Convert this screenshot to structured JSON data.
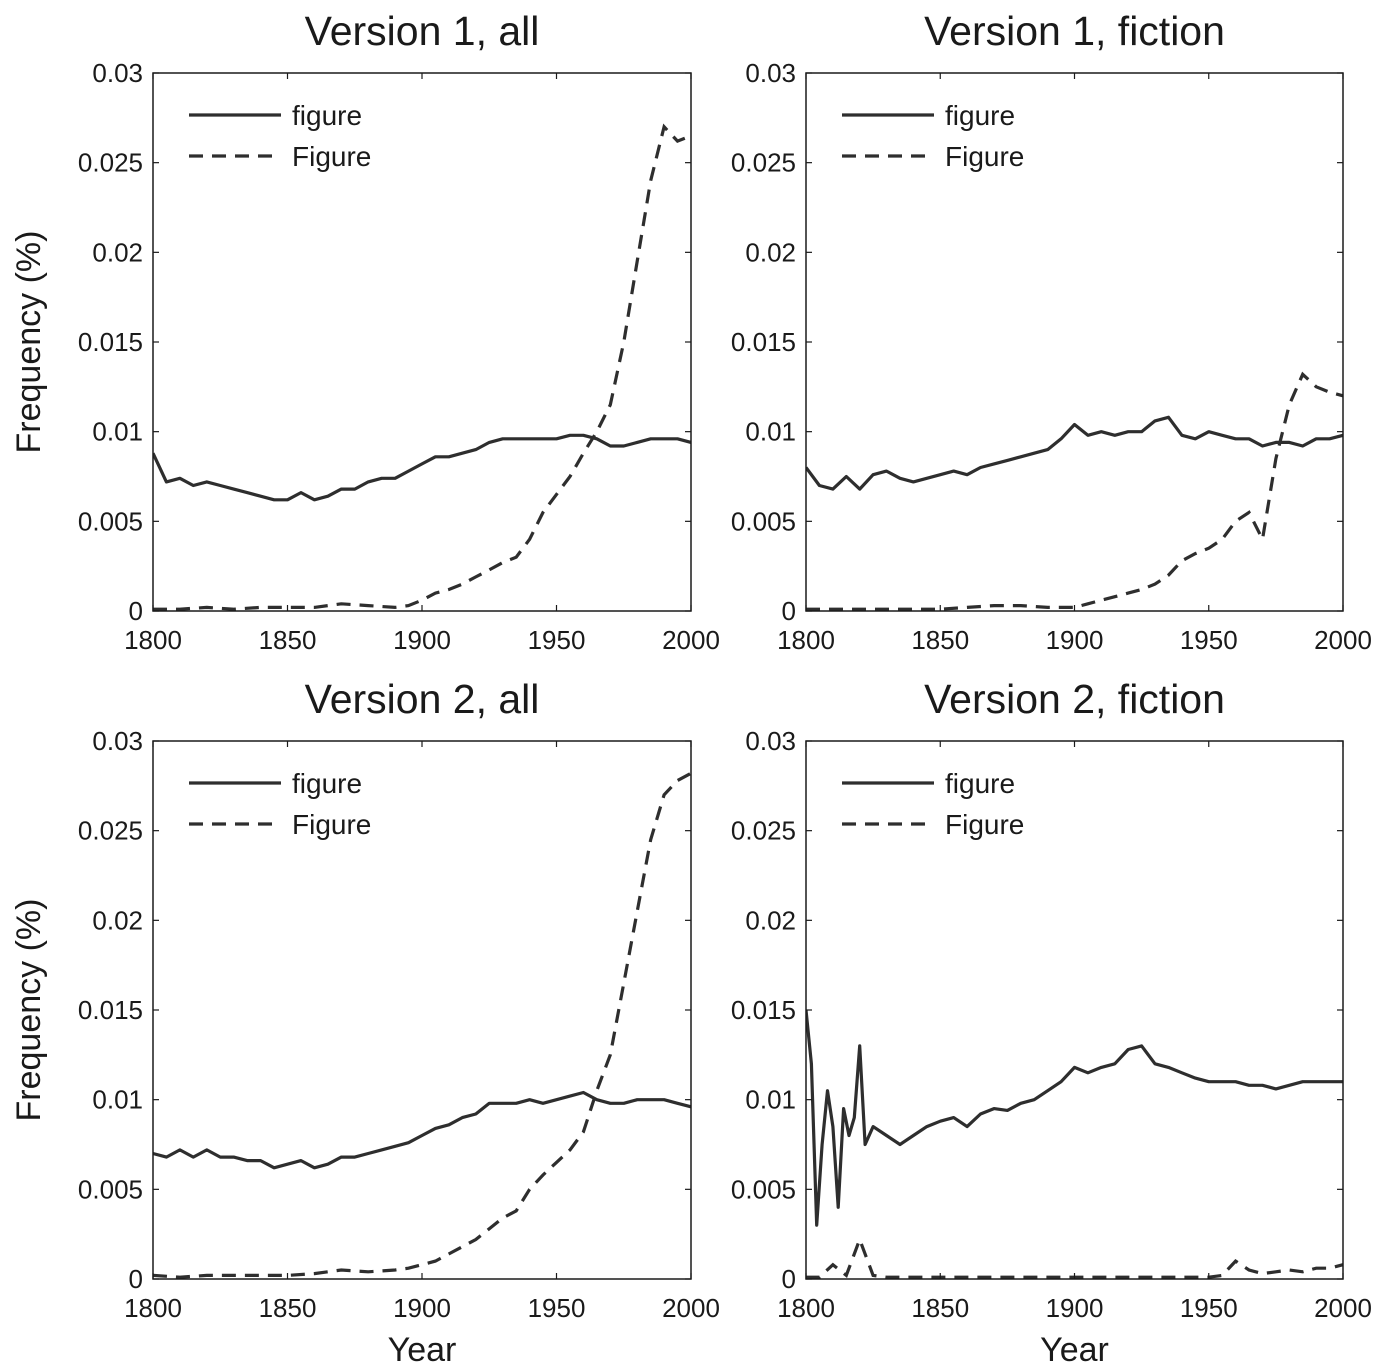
{
  "figure": {
    "colors": {
      "line": "#2e2e2e",
      "axes": "#1a1a1a",
      "background": "#ffffff"
    }
  },
  "chart_data": [
    {
      "type": "line",
      "title": "Version 1, all",
      "xlabel": "",
      "ylabel": "Frequency (%)",
      "xlim": [
        1800,
        2000
      ],
      "ylim": [
        0,
        0.03
      ],
      "xticks": [
        "1800",
        "1850",
        "1900",
        "1950",
        "2000"
      ],
      "yticks": [
        "0",
        "0.005",
        "0.01",
        "0.015",
        "0.02",
        "0.025",
        "0.03"
      ],
      "legend": "top-left",
      "series": [
        {
          "name": "figure",
          "style": "solid",
          "x": [
            1800,
            1805,
            1810,
            1815,
            1820,
            1825,
            1830,
            1835,
            1840,
            1845,
            1850,
            1855,
            1860,
            1865,
            1870,
            1875,
            1880,
            1885,
            1890,
            1895,
            1900,
            1905,
            1910,
            1915,
            1920,
            1925,
            1930,
            1935,
            1940,
            1945,
            1950,
            1955,
            1960,
            1965,
            1970,
            1975,
            1980,
            1985,
            1990,
            1995,
            2000
          ],
          "y": [
            0.0088,
            0.0072,
            0.0074,
            0.007,
            0.0072,
            0.007,
            0.0068,
            0.0066,
            0.0064,
            0.0062,
            0.0062,
            0.0066,
            0.0062,
            0.0064,
            0.0068,
            0.0068,
            0.0072,
            0.0074,
            0.0074,
            0.0078,
            0.0082,
            0.0086,
            0.0086,
            0.0088,
            0.009,
            0.0094,
            0.0096,
            0.0096,
            0.0096,
            0.0096,
            0.0096,
            0.0098,
            0.0098,
            0.0096,
            0.0092,
            0.0092,
            0.0094,
            0.0096,
            0.0096,
            0.0096,
            0.0094
          ]
        },
        {
          "name": "Figure",
          "style": "dashed",
          "x": [
            1800,
            1810,
            1820,
            1830,
            1840,
            1850,
            1860,
            1870,
            1880,
            1890,
            1895,
            1900,
            1905,
            1910,
            1915,
            1920,
            1925,
            1930,
            1935,
            1940,
            1945,
            1950,
            1955,
            1960,
            1965,
            1970,
            1975,
            1980,
            1985,
            1990,
            1995,
            2000
          ],
          "y": [
            0.0001,
            0.0001,
            0.0002,
            0.0001,
            0.0002,
            0.0002,
            0.0002,
            0.0004,
            0.0003,
            0.0002,
            0.0003,
            0.0006,
            0.001,
            0.0012,
            0.0015,
            0.0019,
            0.0023,
            0.0027,
            0.003,
            0.004,
            0.0055,
            0.0065,
            0.0075,
            0.0088,
            0.01,
            0.0115,
            0.015,
            0.0195,
            0.024,
            0.027,
            0.0262,
            0.0265
          ]
        }
      ]
    },
    {
      "type": "line",
      "title": "Version 1, fiction",
      "xlabel": "",
      "ylabel": "",
      "xlim": [
        1800,
        2000
      ],
      "ylim": [
        0,
        0.03
      ],
      "xticks": [
        "1800",
        "1850",
        "1900",
        "1950",
        "2000"
      ],
      "yticks": [
        "0",
        "0.005",
        "0.01",
        "0.015",
        "0.02",
        "0.025",
        "0.03"
      ],
      "legend": "top-left",
      "series": [
        {
          "name": "figure",
          "style": "solid",
          "x": [
            1800,
            1805,
            1810,
            1815,
            1820,
            1825,
            1830,
            1835,
            1840,
            1845,
            1850,
            1855,
            1860,
            1865,
            1870,
            1875,
            1880,
            1885,
            1890,
            1895,
            1900,
            1905,
            1910,
            1915,
            1920,
            1925,
            1930,
            1935,
            1940,
            1945,
            1950,
            1955,
            1960,
            1965,
            1970,
            1975,
            1980,
            1985,
            1990,
            1995,
            2000
          ],
          "y": [
            0.008,
            0.007,
            0.0068,
            0.0075,
            0.0068,
            0.0076,
            0.0078,
            0.0074,
            0.0072,
            0.0074,
            0.0076,
            0.0078,
            0.0076,
            0.008,
            0.0082,
            0.0084,
            0.0086,
            0.0088,
            0.009,
            0.0096,
            0.0104,
            0.0098,
            0.01,
            0.0098,
            0.01,
            0.01,
            0.0106,
            0.0108,
            0.0098,
            0.0096,
            0.01,
            0.0098,
            0.0096,
            0.0096,
            0.0092,
            0.0094,
            0.0094,
            0.0092,
            0.0096,
            0.0096,
            0.0098
          ]
        },
        {
          "name": "Figure",
          "style": "dashed",
          "x": [
            1800,
            1810,
            1820,
            1830,
            1840,
            1850,
            1860,
            1870,
            1880,
            1890,
            1900,
            1905,
            1910,
            1915,
            1920,
            1925,
            1930,
            1935,
            1940,
            1945,
            1950,
            1955,
            1960,
            1965,
            1970,
            1975,
            1980,
            1985,
            1990,
            1995,
            2000
          ],
          "y": [
            0.0001,
            0.0001,
            0.0001,
            0.0001,
            0.0001,
            0.0001,
            0.0002,
            0.0003,
            0.0003,
            0.0002,
            0.0002,
            0.0004,
            0.0006,
            0.0008,
            0.001,
            0.0012,
            0.0015,
            0.002,
            0.0028,
            0.0032,
            0.0035,
            0.004,
            0.005,
            0.0055,
            0.004,
            0.0085,
            0.0115,
            0.0132,
            0.0125,
            0.0122,
            0.012
          ]
        }
      ]
    },
    {
      "type": "line",
      "title": "Version 2, all",
      "xlabel": "Year",
      "ylabel": "Frequency (%)",
      "xlim": [
        1800,
        2000
      ],
      "ylim": [
        0,
        0.03
      ],
      "xticks": [
        "1800",
        "1850",
        "1900",
        "1950",
        "2000"
      ],
      "yticks": [
        "0",
        "0.005",
        "0.01",
        "0.015",
        "0.02",
        "0.025",
        "0.03"
      ],
      "legend": "top-left",
      "series": [
        {
          "name": "figure",
          "style": "solid",
          "x": [
            1800,
            1805,
            1810,
            1815,
            1820,
            1825,
            1830,
            1835,
            1840,
            1845,
            1850,
            1855,
            1860,
            1865,
            1870,
            1875,
            1880,
            1885,
            1890,
            1895,
            1900,
            1905,
            1910,
            1915,
            1920,
            1925,
            1930,
            1935,
            1940,
            1945,
            1950,
            1955,
            1960,
            1965,
            1970,
            1975,
            1980,
            1985,
            1990,
            1995,
            2000
          ],
          "y": [
            0.007,
            0.0068,
            0.0072,
            0.0068,
            0.0072,
            0.0068,
            0.0068,
            0.0066,
            0.0066,
            0.0062,
            0.0064,
            0.0066,
            0.0062,
            0.0064,
            0.0068,
            0.0068,
            0.007,
            0.0072,
            0.0074,
            0.0076,
            0.008,
            0.0084,
            0.0086,
            0.009,
            0.0092,
            0.0098,
            0.0098,
            0.0098,
            0.01,
            0.0098,
            0.01,
            0.0102,
            0.0104,
            0.01,
            0.0098,
            0.0098,
            0.01,
            0.01,
            0.01,
            0.0098,
            0.0096
          ]
        },
        {
          "name": "Figure",
          "style": "dashed",
          "x": [
            1800,
            1810,
            1820,
            1830,
            1840,
            1850,
            1860,
            1870,
            1880,
            1890,
            1895,
            1900,
            1905,
            1910,
            1915,
            1920,
            1925,
            1930,
            1935,
            1940,
            1945,
            1950,
            1955,
            1960,
            1965,
            1970,
            1975,
            1980,
            1985,
            1990,
            1995,
            2000
          ],
          "y": [
            0.0002,
            0.0001,
            0.0002,
            0.0002,
            0.0002,
            0.0002,
            0.0003,
            0.0005,
            0.0004,
            0.0005,
            0.0006,
            0.0008,
            0.001,
            0.0014,
            0.0018,
            0.0022,
            0.0028,
            0.0034,
            0.0038,
            0.005,
            0.0058,
            0.0065,
            0.0072,
            0.0082,
            0.0105,
            0.0125,
            0.0165,
            0.0205,
            0.0245,
            0.027,
            0.0278,
            0.0282
          ]
        }
      ]
    },
    {
      "type": "line",
      "title": "Version 2, fiction",
      "xlabel": "Year",
      "ylabel": "",
      "xlim": [
        1800,
        2000
      ],
      "ylim": [
        0,
        0.03
      ],
      "xticks": [
        "1800",
        "1850",
        "1900",
        "1950",
        "2000"
      ],
      "yticks": [
        "0",
        "0.005",
        "0.01",
        "0.015",
        "0.02",
        "0.025",
        "0.03"
      ],
      "legend": "top-left",
      "series": [
        {
          "name": "figure",
          "style": "solid",
          "x": [
            1800,
            1802,
            1804,
            1806,
            1808,
            1810,
            1812,
            1814,
            1816,
            1818,
            1820,
            1822,
            1825,
            1830,
            1835,
            1840,
            1845,
            1850,
            1855,
            1860,
            1865,
            1870,
            1875,
            1880,
            1885,
            1890,
            1895,
            1900,
            1905,
            1910,
            1915,
            1920,
            1925,
            1930,
            1935,
            1940,
            1945,
            1950,
            1955,
            1960,
            1965,
            1970,
            1975,
            1980,
            1985,
            1990,
            1995,
            2000
          ],
          "y": [
            0.015,
            0.012,
            0.003,
            0.0075,
            0.0105,
            0.0085,
            0.004,
            0.0095,
            0.008,
            0.009,
            0.013,
            0.0075,
            0.0085,
            0.008,
            0.0075,
            0.008,
            0.0085,
            0.0088,
            0.009,
            0.0085,
            0.0092,
            0.0095,
            0.0094,
            0.0098,
            0.01,
            0.0105,
            0.011,
            0.0118,
            0.0115,
            0.0118,
            0.012,
            0.0128,
            0.013,
            0.012,
            0.0118,
            0.0115,
            0.0112,
            0.011,
            0.011,
            0.011,
            0.0108,
            0.0108,
            0.0106,
            0.0108,
            0.011,
            0.011,
            0.011,
            0.011
          ]
        },
        {
          "name": "Figure",
          "style": "dashed",
          "x": [
            1800,
            1805,
            1810,
            1815,
            1820,
            1825,
            1830,
            1840,
            1850,
            1860,
            1870,
            1880,
            1890,
            1900,
            1910,
            1920,
            1930,
            1940,
            1950,
            1955,
            1960,
            1965,
            1970,
            1975,
            1980,
            1985,
            1990,
            1995,
            2000
          ],
          "y": [
            0.0001,
            0.0001,
            0.0008,
            0.0002,
            0.0022,
            0.0002,
            0.0001,
            0.0001,
            0.0001,
            0.0001,
            0.0001,
            0.0001,
            0.0001,
            0.0001,
            0.0001,
            0.0001,
            0.0001,
            0.0001,
            0.0001,
            0.0002,
            0.001,
            0.0005,
            0.0003,
            0.0004,
            0.0005,
            0.0004,
            0.0006,
            0.0006,
            0.0008
          ]
        }
      ]
    }
  ]
}
